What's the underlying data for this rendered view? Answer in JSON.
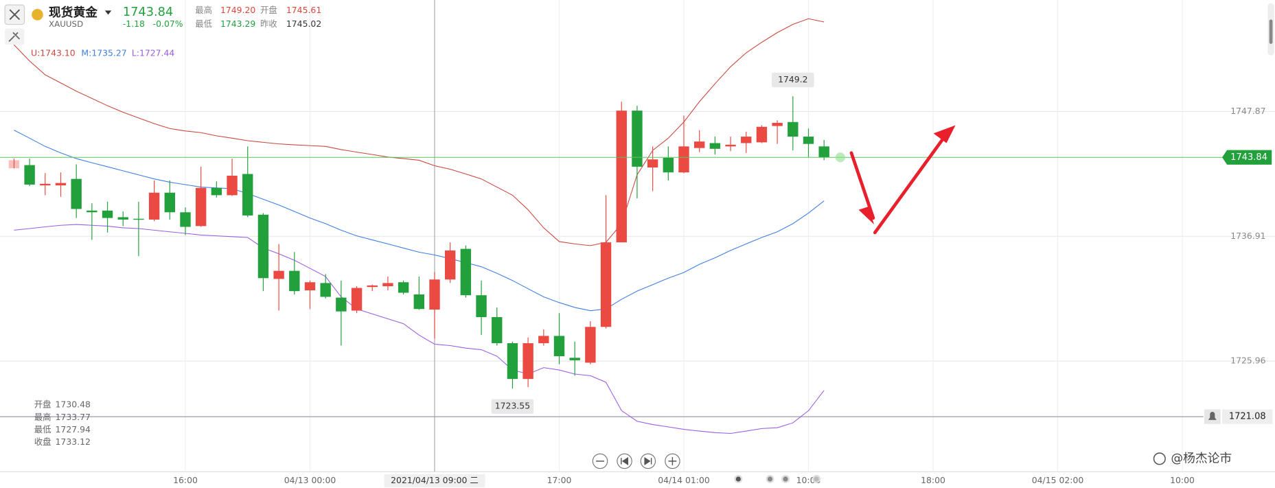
{
  "header": {
    "title": "现货黄金",
    "symbol": "XAUUSD",
    "price": "1743.84",
    "change": "-1.18",
    "change_pct": "-0.07%",
    "stats": [
      {
        "label": "最高",
        "value": "1749.20"
      },
      {
        "label": "开盘",
        "value": "1745.61"
      },
      {
        "label": "最低",
        "value": "1743.29"
      },
      {
        "label": "昨收",
        "value": "1745.02"
      }
    ]
  },
  "watermark": "@杨杰论市",
  "chart_data": {
    "type": "candlestick",
    "up_color": "#ea4a42",
    "down_color": "#22a03c",
    "x": [
      0,
      1,
      2,
      3,
      4,
      5,
      6,
      7,
      8,
      9,
      10,
      11,
      12,
      13,
      14,
      15,
      16,
      17,
      18,
      19,
      20,
      21,
      22,
      23,
      24,
      25,
      26,
      27,
      28,
      29,
      30,
      31,
      32,
      33,
      34,
      35,
      36,
      37,
      38,
      39,
      40,
      41,
      42,
      43,
      44,
      45,
      46,
      47,
      48,
      49,
      50,
      51,
      52
    ],
    "open": [
      1742.88,
      1743.16,
      1741.38,
      1741.38,
      1741.95,
      1739.17,
      1739.17,
      1738.59,
      1738.45,
      1738.38,
      1740.74,
      1739.02,
      1737.81,
      1741.16,
      1740.52,
      1742.38,
      1738.81,
      1733.17,
      1733.88,
      1732.17,
      1732.81,
      1731.53,
      1730.39,
      1732.46,
      1732.53,
      1732.88,
      1731.81,
      1730.48,
      1733.12,
      1735.81,
      1731.74,
      1729.82,
      1727.53,
      1724.39,
      1727.53,
      1728.17,
      1726.25,
      1725.82,
      1728.96,
      1736.38,
      1747.94,
      1742.95,
      1743.8,
      1742.52,
      1744.66,
      1745.09,
      1744.8,
      1745.09,
      1745.16,
      1746.59,
      1746.94,
      1745.66,
      1744.8
    ],
    "high": [
      1743.73,
      1743.73,
      1742.45,
      1742.52,
      1743.23,
      1739.81,
      1739.95,
      1739.09,
      1739.95,
      1741.81,
      1741.81,
      1739.45,
      1743.02,
      1741.73,
      1743.73,
      1744.8,
      1738.95,
      1736.24,
      1735.53,
      1733.03,
      1733.6,
      1733.03,
      1732.53,
      1732.67,
      1733.38,
      1733.03,
      1733.38,
      1733.77,
      1736.38,
      1736.1,
      1733.03,
      1730.67,
      1727.67,
      1728.03,
      1728.75,
      1730.17,
      1727.67,
      1729.46,
      1740.52,
      1748.73,
      1748.37,
      1744.8,
      1744.8,
      1747.51,
      1746.23,
      1745.66,
      1745.66,
      1746.09,
      1746.66,
      1747.09,
      1749.2,
      1746.37,
      1745.37
    ],
    "low": [
      1742.88,
      1741.31,
      1740.52,
      1740.38,
      1738.52,
      1736.6,
      1737.24,
      1737.81,
      1735.17,
      1738.24,
      1738.38,
      1737.02,
      1737.74,
      1740.31,
      1740.45,
      1738.59,
      1732.1,
      1730.39,
      1731.81,
      1730.53,
      1731.46,
      1727.32,
      1730.17,
      1732.1,
      1732.17,
      1731.81,
      1730.46,
      1727.94,
      1732.81,
      1731.53,
      1728.25,
      1727.32,
      1723.55,
      1723.68,
      1727.32,
      1725.68,
      1724.68,
      1725.68,
      1728.82,
      1736.38,
      1740.24,
      1740.88,
      1741.81,
      1742.45,
      1744.3,
      1744.09,
      1744.38,
      1744.23,
      1745.09,
      1745.02,
      1744.45,
      1743.88,
      1743.59
    ],
    "close": [
      1743.59,
      1741.45,
      1741.52,
      1741.59,
      1739.31,
      1739.02,
      1738.52,
      1738.38,
      1738.38,
      1740.74,
      1739.02,
      1737.74,
      1741.16,
      1740.52,
      1742.23,
      1738.74,
      1733.24,
      1733.88,
      1732.1,
      1732.88,
      1731.6,
      1730.32,
      1732.38,
      1732.6,
      1732.81,
      1731.96,
      1730.53,
      1733.12,
      1735.67,
      1731.74,
      1729.82,
      1727.53,
      1724.39,
      1727.53,
      1728.17,
      1726.39,
      1726.03,
      1728.96,
      1736.38,
      1747.94,
      1743.02,
      1743.66,
      1742.52,
      1744.8,
      1745.23,
      1744.59,
      1744.95,
      1745.66,
      1746.52,
      1746.87,
      1745.66,
      1745.02,
      1743.84
    ],
    "series": [
      {
        "name": "U:1743.10",
        "color": "#c9473d",
        "values": [
          1753.72,
          1752.3,
          1751.08,
          1750.37,
          1749.65,
          1749.01,
          1748.37,
          1747.8,
          1747.3,
          1746.8,
          1746.37,
          1746.16,
          1746.01,
          1745.73,
          1745.52,
          1745.3,
          1745.16,
          1745.02,
          1744.94,
          1744.87,
          1744.8,
          1744.52,
          1744.3,
          1744.09,
          1743.87,
          1743.73,
          1743.59,
          1743.1,
          1742.8,
          1742.38,
          1741.95,
          1741.23,
          1740.52,
          1739.24,
          1737.66,
          1736.45,
          1736.24,
          1736.09,
          1736.38,
          1738.02,
          1742.3,
          1744.45,
          1745.52,
          1746.94,
          1748.73,
          1750.3,
          1751.8,
          1753.01,
          1753.94,
          1754.79,
          1755.51,
          1756.01,
          1755.72
        ]
      },
      {
        "name": "M:1735.27",
        "color": "#3d7fe0",
        "values": [
          1746.23,
          1745.52,
          1744.8,
          1744.23,
          1743.73,
          1743.37,
          1743.02,
          1742.66,
          1742.3,
          1741.95,
          1741.66,
          1741.45,
          1741.23,
          1741.16,
          1741.09,
          1740.66,
          1740.16,
          1739.66,
          1739.09,
          1738.52,
          1738.02,
          1737.45,
          1736.95,
          1736.59,
          1736.24,
          1735.88,
          1735.52,
          1735.27,
          1734.95,
          1734.6,
          1734.24,
          1733.67,
          1733.03,
          1732.31,
          1731.6,
          1731.1,
          1730.67,
          1730.38,
          1730.53,
          1731.38,
          1732.1,
          1732.67,
          1733.24,
          1733.74,
          1734.45,
          1735.02,
          1735.67,
          1736.24,
          1736.81,
          1737.31,
          1738.02,
          1738.95,
          1740.02
        ]
      },
      {
        "name": "L:1727.44",
        "color": "#9a5ce3",
        "values": [
          1737.45,
          1737.59,
          1737.74,
          1737.88,
          1737.95,
          1737.88,
          1737.81,
          1737.66,
          1737.59,
          1737.45,
          1737.31,
          1737.17,
          1737.02,
          1736.95,
          1736.88,
          1736.81,
          1735.88,
          1735.38,
          1734.81,
          1734.1,
          1733.38,
          1731.6,
          1730.53,
          1730.1,
          1729.67,
          1729.24,
          1728.24,
          1727.44,
          1727.32,
          1727.1,
          1726.96,
          1726.39,
          1725.18,
          1724.82,
          1725.39,
          1725.18,
          1724.82,
          1724.68,
          1724.1,
          1721.61,
          1720.68,
          1720.39,
          1720.18,
          1719.97,
          1719.82,
          1719.68,
          1719.61,
          1719.82,
          1720.04,
          1720.11,
          1720.54,
          1721.61,
          1723.39
        ]
      }
    ],
    "ylim": [
      1716.25,
      1757.65
    ],
    "yticks": [
      1725.96,
      1736.91,
      1747.87
    ],
    "xlim": [
      -0.9,
      77.4
    ],
    "xticks": [
      {
        "value": 11,
        "label": "16:00"
      },
      {
        "value": 19,
        "label": "04/13 00:00"
      },
      {
        "value": 35,
        "label": "17:00"
      },
      {
        "value": 43,
        "label": "04/14 01:00"
      },
      {
        "value": 51,
        "label": "10:00"
      },
      {
        "value": 59,
        "label": "18:00"
      },
      {
        "value": 67,
        "label": "04/15 02:00"
      },
      {
        "value": 75,
        "label": "10:00"
      }
    ],
    "grid": true,
    "alert_line": 1721.08,
    "crosshair": {
      "x": 27,
      "label": "2021/04/13 09:00 二",
      "labels": [
        "开盘",
        "最高",
        "最低",
        "收盘"
      ]
    }
  }
}
